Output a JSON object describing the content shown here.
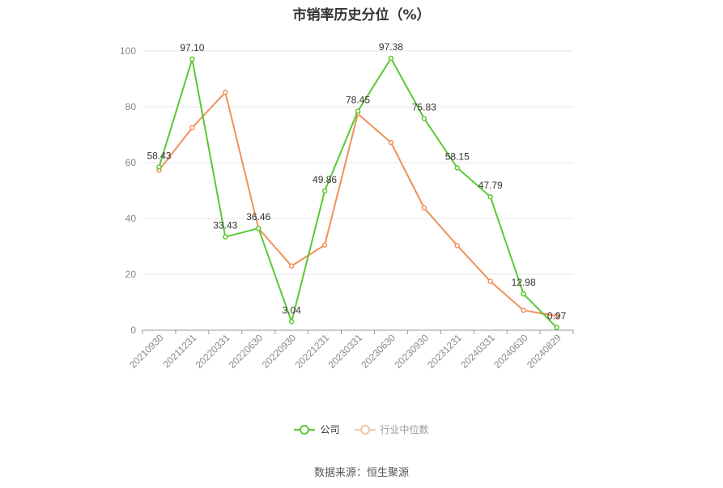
{
  "chart_data": {
    "type": "line",
    "title": "市销率历史分位（%）",
    "categories": [
      "20210930",
      "20211231",
      "20220331",
      "20220630",
      "20220930",
      "20221231",
      "20230331",
      "20230630",
      "20230930",
      "20231231",
      "20240331",
      "20240630",
      "20240829"
    ],
    "ylim": [
      0,
      100
    ],
    "yticks": [
      0,
      20,
      40,
      60,
      80,
      100
    ],
    "grid": true,
    "legend_position": "bottom-center",
    "series": [
      {
        "name": "公司",
        "color": "#5ac832",
        "values": [
          58.43,
          97.1,
          33.43,
          36.46,
          3.04,
          49.86,
          78.45,
          97.38,
          75.83,
          58.15,
          47.79,
          12.98,
          0.97
        ],
        "labels": [
          "58.43",
          "97.10",
          "33.43",
          "36.46",
          "3.04",
          "49.86",
          "78.45",
          "97.38",
          "75.83",
          "58.15",
          "47.79",
          "12.98",
          "0.97"
        ]
      },
      {
        "name": "行业中位数",
        "color": "#f0905a",
        "values": [
          57.3,
          72.5,
          85.2,
          36.5,
          23.0,
          30.5,
          77.5,
          67.2,
          43.8,
          30.3,
          17.5,
          7.1,
          5.1
        ]
      }
    ]
  },
  "source": "数据来源：恒生聚源"
}
